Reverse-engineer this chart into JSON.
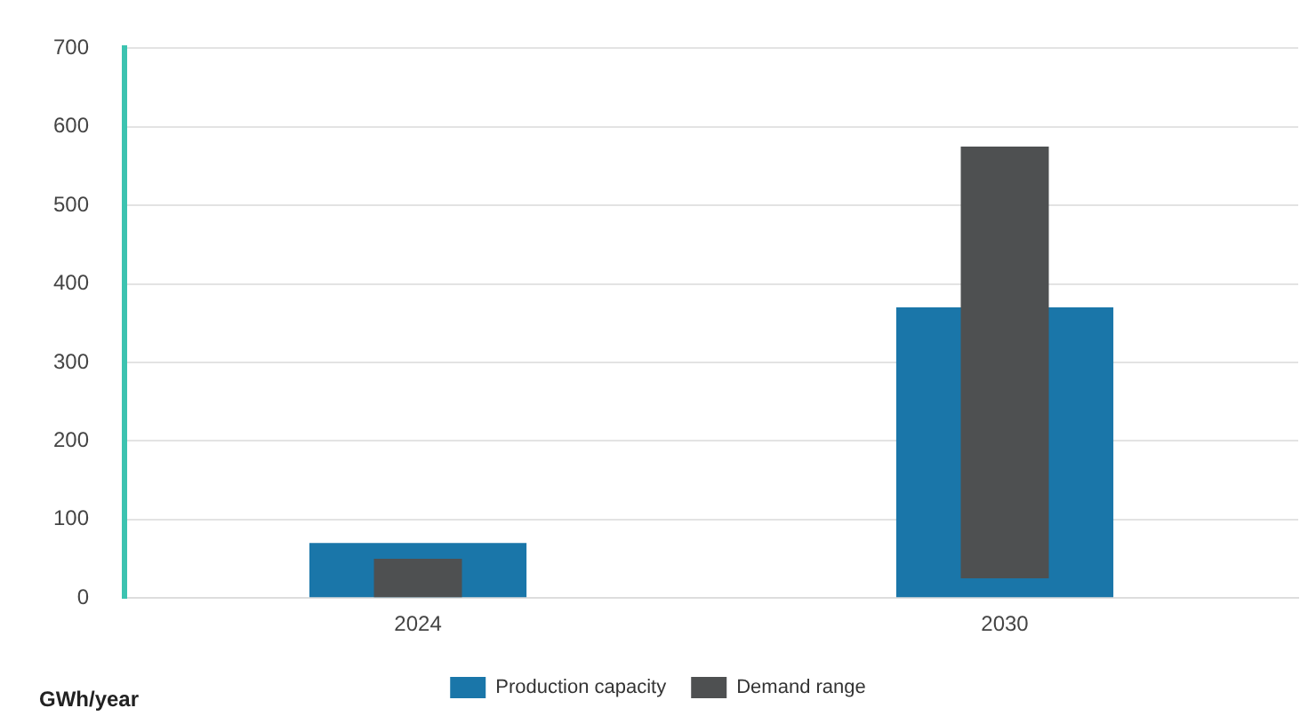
{
  "chart_data": {
    "type": "bar",
    "ylabel": "GWh/year",
    "categories": [
      "2024",
      "2030"
    ],
    "series": [
      {
        "name": "Production capacity",
        "color": "#1a76a9",
        "values": [
          70,
          370
        ],
        "base": [
          0,
          0
        ]
      },
      {
        "name": "Demand range",
        "color": "#4e5051",
        "values": [
          50,
          550
        ],
        "base": [
          0,
          25
        ]
      }
    ],
    "ylim": [
      0,
      700
    ],
    "yticks": [
      0,
      100,
      200,
      300,
      400,
      500,
      600,
      700
    ],
    "grid": "y",
    "legend": "bottom"
  }
}
